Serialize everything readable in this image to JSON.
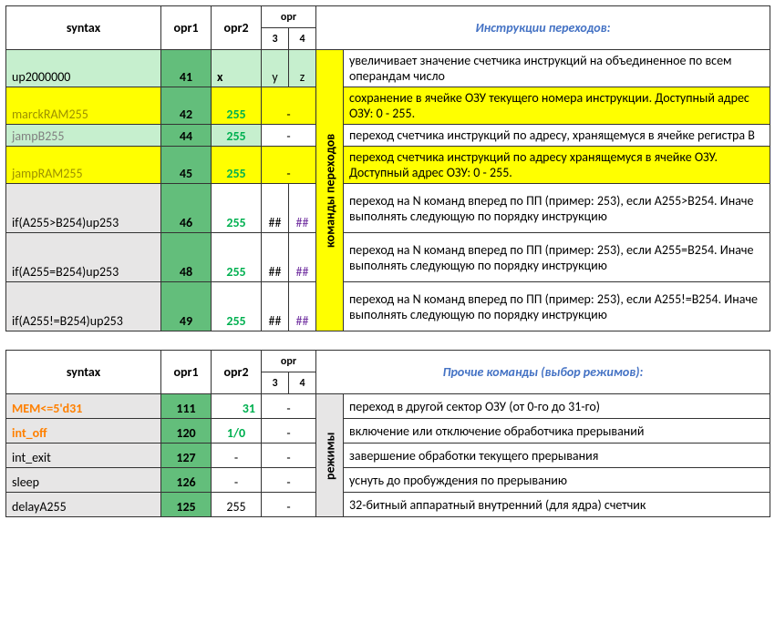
{
  "headers": {
    "syntax": "syntax",
    "opr1": "opr1",
    "opr2": "opr2",
    "opr34_top": "opr",
    "opr3": "3",
    "opr4": "4"
  },
  "table1": {
    "title": "Инструкции переходов:",
    "group_label": "команды переходов",
    "rows": [
      {
        "syntax": "up2000000",
        "opr1": "41",
        "opr2": "x",
        "opr3": "y",
        "opr4": "z",
        "desc": "увеличивает значение счетчика инструкций на объединенное по всем операндам число",
        "variant": "green"
      },
      {
        "syntax": "marckRAM255",
        "opr1": "42",
        "opr2": "255",
        "opr3": "",
        "opr4": "-",
        "desc": "сохранение в ячейке ОЗУ текущего номера инструкции. Доступный адрес ОЗУ: 0 - 255.",
        "variant": "yellow"
      },
      {
        "syntax": "jampB255",
        "opr1": "44",
        "opr2": "255",
        "opr3": "",
        "opr4": "-",
        "desc": "переход счетчика инструкций по адресу, хранящемуся в ячейке регистра B",
        "variant": "green"
      },
      {
        "syntax": "jampRAM255",
        "opr1": "45",
        "opr2": "255",
        "opr3": "",
        "opr4": "-",
        "desc": "переход счетчика инструкций по адресу хранящемуся в ячейке ОЗУ. Доступный адрес ОЗУ: 0 - 255.",
        "variant": "yellow"
      },
      {
        "syntax": "if(A255>B254)up253",
        "opr1": "46",
        "opr2": "255",
        "opr3": "##",
        "opr4": "##",
        "desc": "переход на N команд вперед по ПП (пример: 253), если A255>B254. Иначе выполнять следующую по порядку инструкцию",
        "variant": "grey"
      },
      {
        "syntax": "if(A255=B254)up253",
        "opr1": "48",
        "opr2": "255",
        "opr3": "##",
        "opr4": "##",
        "desc": "переход на N команд вперед по ПП (пример: 253), если A255=B254. Иначе выполнять следующую по порядку инструкцию",
        "variant": "grey"
      },
      {
        "syntax": "if(A255!=B254)up253",
        "opr1": "49",
        "opr2": "255",
        "opr3": "##",
        "opr4": "##",
        "desc": "переход на N команд вперед по ПП (пример: 253), если A255!=B254. Иначе выполнять следующую по порядку инструкцию",
        "variant": "grey"
      }
    ]
  },
  "table2": {
    "title": "Прочие команды (выбор режимов):",
    "group_label": "режимы",
    "rows": [
      {
        "syntax": "MEM<=5'd31",
        "opr1": "111",
        "opr2": "31",
        "opr3": "",
        "opr4": "-",
        "desc": "переход в другой сектор ОЗУ (от 0-го до 31-го)",
        "variant": "orange"
      },
      {
        "syntax": "int_off",
        "opr1": "120",
        "opr2": "1/0",
        "opr3": "",
        "opr4": "-",
        "desc": "включение или отключение обработчика прерываний",
        "variant": "orange"
      },
      {
        "syntax": "int_exit",
        "opr1": "127",
        "opr2": "-",
        "opr3": "",
        "opr4": "-",
        "desc": "завершение обработки текущего прерывания",
        "variant": "plain"
      },
      {
        "syntax": "sleep",
        "opr1": "126",
        "opr2": "-",
        "opr3": "",
        "opr4": "-",
        "desc": "уснуть до пробуждения по прерыванию",
        "variant": "plain"
      },
      {
        "syntax": "delayA255",
        "opr1": "125",
        "opr2": "255",
        "opr3": "",
        "opr4": "-",
        "desc": "32-битный аппаратный внутренний (для ядра) счетчик",
        "variant": "plain-255"
      }
    ]
  }
}
